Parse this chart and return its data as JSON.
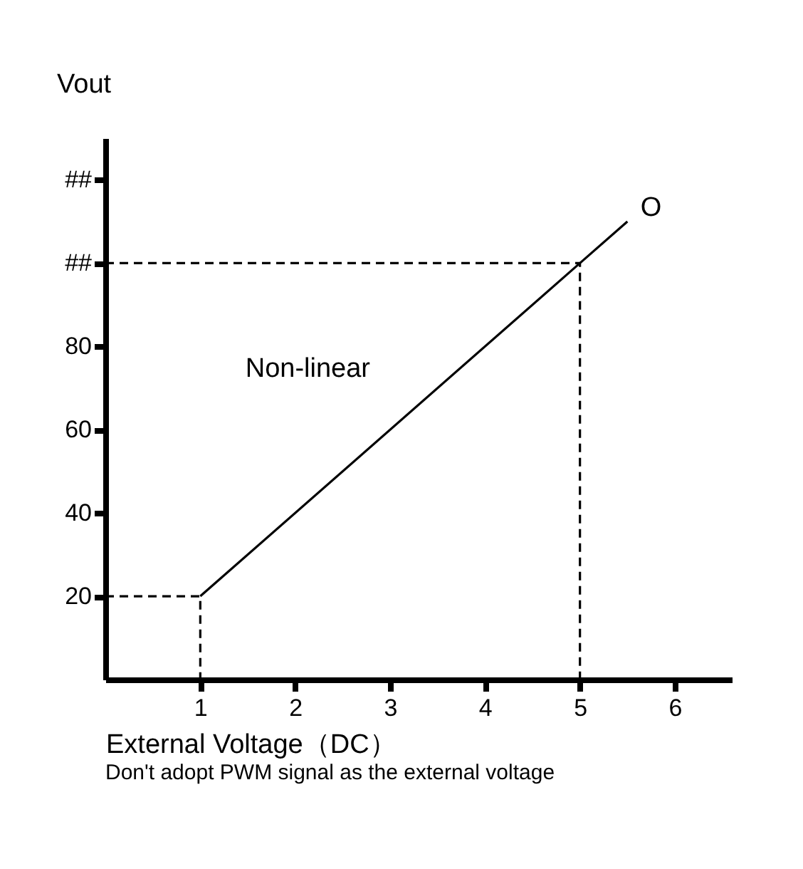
{
  "chart_data": {
    "type": "line",
    "xlabel": "External Voltage（DC）",
    "ylabel": "Vout",
    "series": [
      {
        "color": "#000000",
        "x": [
          1,
          5,
          5.5
        ],
        "values": [
          20,
          100,
          110
        ],
        "line_style": "solid"
      },
      {
        "color": "#000000",
        "x": [
          0,
          1,
          1
        ],
        "values": [
          20,
          20,
          0
        ],
        "line_style": "dashed"
      },
      {
        "color": "#000000",
        "x": [
          0,
          5,
          5
        ],
        "values": [
          100,
          100,
          0
        ],
        "line_style": "dashed"
      }
    ],
    "xlim": [
      0,
      6.6
    ],
    "xticks": [
      1,
      2,
      3,
      4,
      5,
      6
    ],
    "ylim": [
      0,
      130
    ],
    "yticks": [
      20,
      40,
      60,
      80,
      {
        "value": 100,
        "label": "##"
      },
      {
        "value": 120,
        "label": "##"
      }
    ],
    "grid": false,
    "marker": "none",
    "annotations": [
      {
        "text": "Non-linear",
        "x": 3,
        "y": 61
      },
      {
        "text": "O",
        "x": 5.5,
        "y": 110
      },
      "Don't adopt PWM signal as the external voltage"
    ]
  }
}
